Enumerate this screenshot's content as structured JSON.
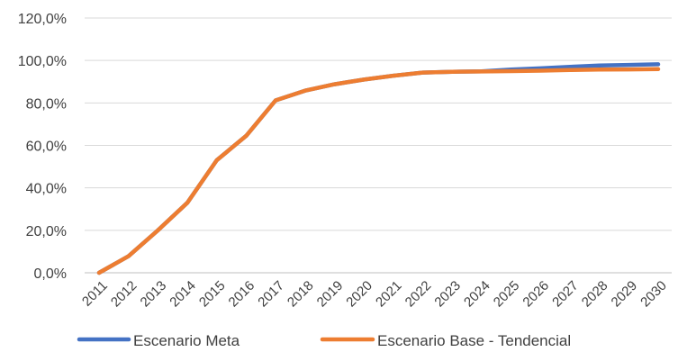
{
  "chart_data": {
    "type": "line",
    "title": "",
    "xlabel": "",
    "ylabel": "",
    "categories": [
      "2011",
      "2012",
      "2013",
      "2014",
      "2015",
      "2016",
      "2017",
      "2018",
      "2019",
      "2020",
      "2021",
      "2022",
      "2023",
      "2024",
      "2025",
      "2026",
      "2027",
      "2028",
      "2029",
      "2030"
    ],
    "ylim": [
      0,
      120
    ],
    "y_ticks": [
      "0,0%",
      "20,0%",
      "40,0%",
      "60,0%",
      "80,0%",
      "100,0%",
      "120,0%"
    ],
    "grid": true,
    "legend_position": "bottom",
    "series": [
      {
        "name": "Escenario Meta",
        "color": "#4472C4",
        "values": [
          0.0,
          7.8,
          20.0,
          33.0,
          53.0,
          64.5,
          81.2,
          85.8,
          88.8,
          91.0,
          92.8,
          94.3,
          94.7,
          94.9,
          95.7,
          96.3,
          97.0,
          97.6,
          97.9,
          98.2
        ]
      },
      {
        "name": "Escenario Base - Tendencial",
        "color": "#ED7D31",
        "values": [
          0.0,
          7.8,
          20.0,
          33.0,
          53.0,
          64.5,
          81.2,
          85.8,
          88.8,
          91.0,
          92.8,
          94.3,
          94.7,
          94.8,
          95.0,
          95.2,
          95.5,
          95.7,
          95.8,
          95.9
        ]
      }
    ]
  }
}
